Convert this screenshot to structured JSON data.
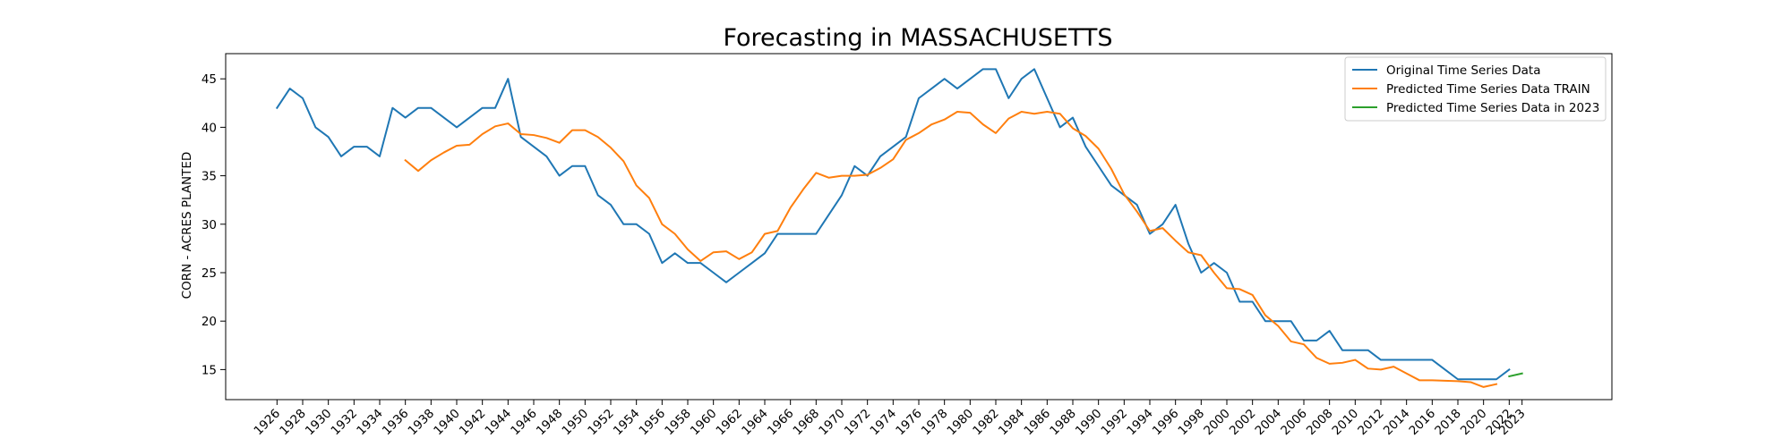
{
  "chart_data": {
    "type": "line",
    "title": "Forecasting in MASSACHUSETTS",
    "xlabel": "",
    "ylabel": "CORN - ACRES PLANTED",
    "xlim": [
      1922,
      2030
    ],
    "ylim": [
      11.9,
      47.6
    ],
    "yticks": [
      15,
      20,
      25,
      30,
      35,
      40,
      45
    ],
    "xtick_labels": [
      "1926",
      "1928",
      "1930",
      "1932",
      "1934",
      "1936",
      "1938",
      "1940",
      "1942",
      "1944",
      "1946",
      "1948",
      "1950",
      "1952",
      "1954",
      "1956",
      "1958",
      "1960",
      "1962",
      "1964",
      "1966",
      "1968",
      "1970",
      "1972",
      "1974",
      "1976",
      "1978",
      "1980",
      "1982",
      "1984",
      "1986",
      "1988",
      "1990",
      "1992",
      "1994",
      "1996",
      "1998",
      "2000",
      "2002",
      "2004",
      "2006",
      "2008",
      "2010",
      "2012",
      "2014",
      "2016",
      "2018",
      "2020",
      "2022",
      "2023"
    ],
    "legend_position": "top-right",
    "grid": false,
    "series": [
      {
        "name": "Original Time Series Data",
        "color": "#1f77b4",
        "x": [
          1926,
          1927,
          1928,
          1929,
          1930,
          1931,
          1932,
          1933,
          1934,
          1935,
          1936,
          1937,
          1938,
          1939,
          1940,
          1941,
          1942,
          1943,
          1944,
          1945,
          1946,
          1947,
          1948,
          1949,
          1950,
          1951,
          1952,
          1953,
          1954,
          1955,
          1956,
          1957,
          1958,
          1959,
          1960,
          1961,
          1962,
          1963,
          1964,
          1965,
          1966,
          1967,
          1968,
          1969,
          1970,
          1971,
          1972,
          1973,
          1974,
          1975,
          1976,
          1977,
          1978,
          1979,
          1980,
          1981,
          1982,
          1983,
          1984,
          1985,
          1986,
          1987,
          1988,
          1989,
          1990,
          1991,
          1992,
          1993,
          1994,
          1995,
          1996,
          1997,
          1998,
          1999,
          2000,
          2001,
          2002,
          2003,
          2004,
          2005,
          2006,
          2007,
          2008,
          2009,
          2010,
          2011,
          2012,
          2013,
          2014,
          2015,
          2016,
          2017,
          2018,
          2019,
          2020,
          2021,
          2022
        ],
        "y": [
          42,
          44,
          43,
          40,
          39,
          37,
          38,
          38,
          37,
          42,
          41,
          42,
          42,
          41,
          40,
          41,
          42,
          42,
          45,
          39,
          38,
          37,
          35,
          36,
          36,
          33,
          32,
          30,
          30,
          29,
          26,
          27,
          26,
          26,
          25,
          24,
          25,
          26,
          27,
          29,
          29,
          29,
          29,
          31,
          33,
          36,
          35,
          37,
          38,
          39,
          43,
          44,
          45,
          44,
          45,
          46,
          46,
          43,
          45,
          46,
          43,
          40,
          41,
          38,
          36,
          34,
          33,
          32,
          29,
          30,
          32,
          28,
          25,
          26,
          25,
          22,
          22,
          20,
          20,
          20,
          18,
          18,
          19,
          17,
          17,
          17,
          16,
          16,
          16,
          16,
          16,
          15,
          14,
          14,
          14,
          14,
          15
        ]
      },
      {
        "name": "Predicted Time Series Data TRAIN",
        "color": "#ff7f0e",
        "x": [
          1936,
          1937,
          1938,
          1939,
          1940,
          1941,
          1942,
          1943,
          1944,
          1945,
          1946,
          1947,
          1948,
          1949,
          1950,
          1951,
          1952,
          1953,
          1954,
          1955,
          1956,
          1957,
          1958,
          1959,
          1960,
          1961,
          1962,
          1963,
          1964,
          1965,
          1966,
          1967,
          1968,
          1969,
          1970,
          1971,
          1972,
          1973,
          1974,
          1975,
          1976,
          1977,
          1978,
          1979,
          1980,
          1981,
          1982,
          1983,
          1984,
          1985,
          1986,
          1987,
          1988,
          1989,
          1990,
          1991,
          1992,
          1993,
          1994,
          1995,
          1996,
          1997,
          1998,
          1999,
          2000,
          2001,
          2002,
          2003,
          2004,
          2005,
          2006,
          2007,
          2008,
          2009,
          2010,
          2011,
          2012,
          2013,
          2014,
          2015,
          2016,
          2017,
          2018,
          2019,
          2020,
          2021
        ],
        "y": [
          36.6,
          35.5,
          36.6,
          37.4,
          38.1,
          38.2,
          39.3,
          40.1,
          40.4,
          39.3,
          39.2,
          38.9,
          38.4,
          39.7,
          39.7,
          39,
          37.9,
          36.5,
          34,
          32.7,
          30,
          29,
          27.4,
          26.2,
          27.1,
          27.2,
          26.4,
          27.1,
          29,
          29.3,
          31.7,
          33.6,
          35.3,
          34.8,
          35,
          35,
          35.1,
          35.8,
          36.7,
          38.7,
          39.4,
          40.3,
          40.8,
          41.6,
          41.5,
          40.3,
          39.4,
          40.9,
          41.6,
          41.4,
          41.6,
          41.4,
          39.9,
          39.1,
          37.8,
          35.7,
          33.1,
          31.3,
          29.3,
          29.6,
          28.3,
          27.1,
          26.8,
          25,
          23.4,
          23.3,
          22.7,
          20.6,
          19.5,
          17.9,
          17.6,
          16.2,
          15.6,
          15.7,
          16,
          15.1,
          15,
          15.3,
          14.6,
          13.9,
          13.9,
          13.85,
          13.8,
          13.7,
          13.2,
          13.5
        ]
      },
      {
        "name": "Predicted Time Series Data in 2023",
        "color": "#2ca02c",
        "x": [
          2022,
          2023
        ],
        "y": [
          14.3,
          14.6
        ]
      }
    ]
  }
}
